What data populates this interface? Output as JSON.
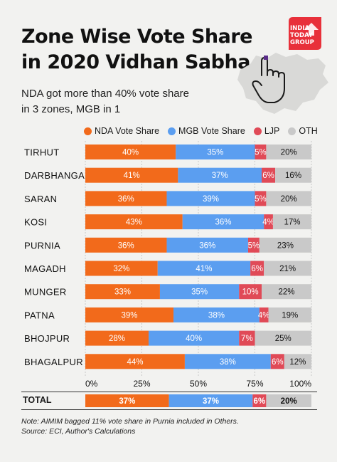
{
  "header": {
    "title_line1": "Zone Wise Vote Share",
    "title_line2": "in 2020 Vidhan Sabha",
    "subtitle_line1": "NDA got more than 40% vote share",
    "subtitle_line2": "in 3 zones, MGB in 1",
    "logo_line1": "INDIA",
    "logo_line2": "TODAY",
    "logo_line3": "GROUP"
  },
  "colors": {
    "nda": "#f26a1b",
    "mgb": "#5b9ef0",
    "ljp": "#e04a57",
    "oth": "#c9c9c9",
    "logo": "#e8303a"
  },
  "chart_data": {
    "type": "bar",
    "orientation": "horizontal",
    "stacked": true,
    "categories": [
      "TIRHUT",
      "DARBHANGA",
      "SARAN",
      "KOSI",
      "PURNIA",
      "MAGADH",
      "MUNGER",
      "PATNA",
      "BHOJPUR",
      "BHAGALPUR"
    ],
    "series": [
      {
        "name": "NDA Vote Share",
        "values": [
          40,
          41,
          36,
          43,
          36,
          32,
          33,
          39,
          28,
          44
        ]
      },
      {
        "name": "MGB Vote Share",
        "values": [
          35,
          37,
          39,
          36,
          36,
          41,
          35,
          38,
          40,
          38
        ]
      },
      {
        "name": "LJP",
        "values": [
          5,
          6,
          5,
          4,
          5,
          6,
          10,
          4,
          7,
          6
        ]
      },
      {
        "name": "OTH",
        "values": [
          20,
          16,
          20,
          17,
          23,
          21,
          22,
          19,
          25,
          12
        ]
      }
    ],
    "xlim": [
      0,
      100
    ],
    "xticks": [
      "0%",
      "25%",
      "50%",
      "75%",
      "100%"
    ],
    "legend_position": "top",
    "total": {
      "label": "TOTAL",
      "values": [
        37,
        37,
        6,
        20
      ]
    }
  },
  "notes": {
    "note_line": "Note: AIMIM bagged 11% vote share in Purnia included in Others.",
    "source_line": "Source: ECI, Author's Calculations"
  }
}
